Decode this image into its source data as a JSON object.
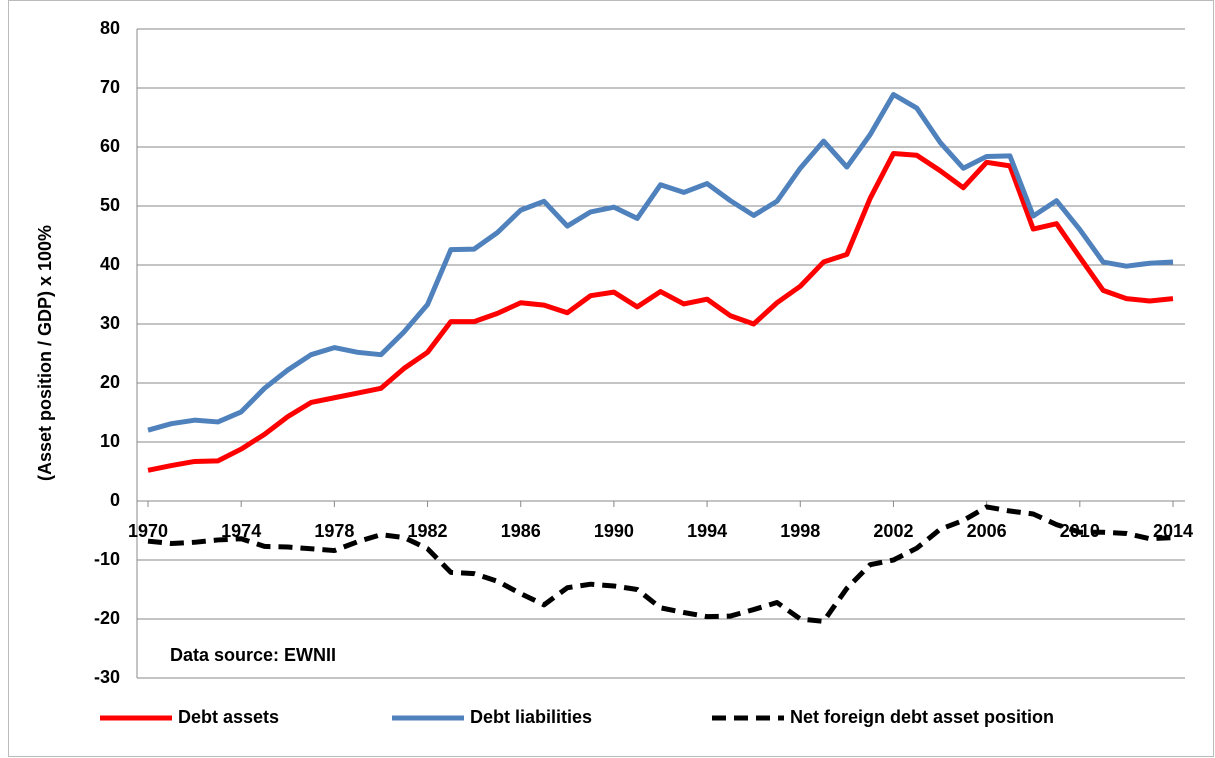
{
  "chart_data": {
    "type": "line",
    "y_label": "(Asset position / GDP) x 100%",
    "annotation": "Data source: EWNII",
    "x": [
      1970,
      1971,
      1972,
      1973,
      1974,
      1975,
      1976,
      1977,
      1978,
      1979,
      1980,
      1981,
      1982,
      1983,
      1984,
      1985,
      1986,
      1987,
      1988,
      1989,
      1990,
      1991,
      1992,
      1993,
      1994,
      1995,
      1996,
      1997,
      1998,
      1999,
      2000,
      2001,
      2002,
      2003,
      2004,
      2005,
      2006,
      2007,
      2008,
      2009,
      2010,
      2011,
      2012,
      2013,
      2014
    ],
    "xlim": [
      1970,
      2014
    ],
    "xticks": [
      1970,
      1974,
      1978,
      1982,
      1986,
      1990,
      1994,
      1998,
      2002,
      2006,
      2010,
      2014
    ],
    "ylim": [
      -30,
      80
    ],
    "yticks": [
      -30,
      -20,
      -10,
      0,
      10,
      20,
      30,
      40,
      50,
      60,
      70,
      80
    ],
    "grid": true,
    "legend": "bottom",
    "series": [
      {
        "name": "Debt assets",
        "color": "#ff0000",
        "dash": false,
        "values": [
          5.2,
          6,
          6.7,
          6.8,
          8.8,
          11.3,
          14.3,
          16.7,
          17.5,
          18.3,
          19.1,
          22.5,
          25.2,
          30.4,
          30.4,
          31.8,
          33.6,
          33.2,
          31.9,
          34.8,
          35.4,
          32.9,
          35.5,
          33.4,
          34.2,
          31.4,
          30,
          33.6,
          36.4,
          40.5,
          41.8,
          51.3,
          58.9,
          58.6,
          56,
          53.1,
          57.4,
          56.8,
          46.1,
          47,
          41.3,
          35.7,
          34.3,
          33.9,
          34.3
        ]
      },
      {
        "name": "Debt liabilities",
        "color": "#4f81bd",
        "dash": false,
        "values": [
          12,
          13.1,
          13.7,
          13.4,
          15.1,
          19.1,
          22.2,
          24.8,
          26,
          25.2,
          24.8,
          28.7,
          33.3,
          42.6,
          42.7,
          45.5,
          49.3,
          50.8,
          46.6,
          49,
          49.8,
          47.9,
          53.6,
          52.3,
          53.8,
          50.9,
          48.4,
          50.8,
          56.4,
          61,
          56.6,
          62.1,
          68.9,
          66.6,
          60.8,
          56.4,
          58.4,
          58.5,
          48.3,
          50.9,
          46,
          40.5,
          39.8,
          40.3,
          40.5
        ]
      },
      {
        "name": "Net foreign debt asset position",
        "color": "#000000",
        "dash": true,
        "values": [
          -6.8,
          -7.2,
          -7,
          -6.6,
          -6.4,
          -7.7,
          -7.8,
          -8.1,
          -8.4,
          -6.9,
          -5.7,
          -6.2,
          -8.1,
          -12.1,
          -12.3,
          -13.6,
          -15.7,
          -17.6,
          -14.7,
          -14.1,
          -14.4,
          -15,
          -18.1,
          -18.9,
          -19.6,
          -19.5,
          -18.4,
          -17.2,
          -20,
          -20.4,
          -14.8,
          -10.8,
          -10,
          -8,
          -4.8,
          -3.3,
          -1,
          -1.7,
          -2.2,
          -4,
          -5.3,
          -5.3,
          -5.5,
          -6.4,
          -6.2
        ]
      }
    ]
  }
}
